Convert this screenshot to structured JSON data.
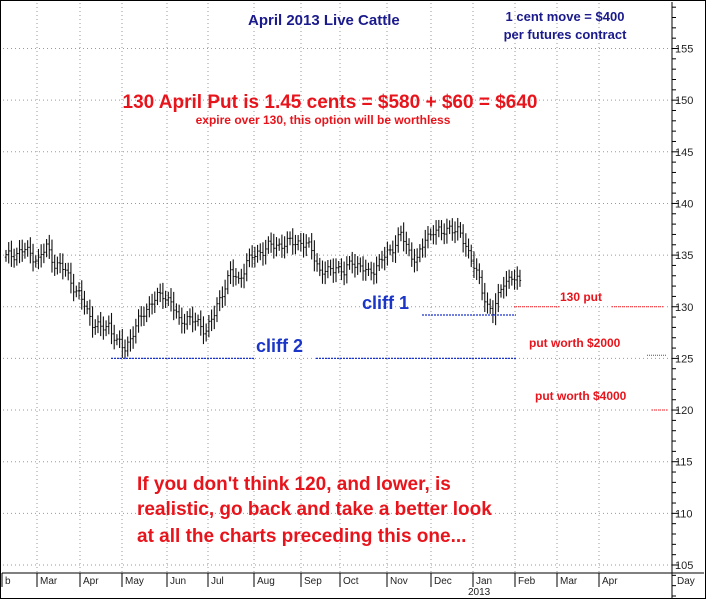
{
  "chart_data": {
    "type": "bar",
    "style": "ohlc",
    "title": "April 2013 Live Cattle",
    "note_lines": [
      "1 cent move = $400",
      "per futures contract"
    ],
    "headline": "130 April Put is 1.45 cents = $580 + $60 = $640",
    "subheadline": "expire over 130, this option will be worthless",
    "bottom_text": [
      "If you don't think 120, and lower, is",
      "realistic, go back and take a better look",
      "at all the charts preceding this one..."
    ],
    "y_axis": {
      "position": "right",
      "ylim": [
        101,
        160
      ],
      "ticks": [
        105,
        110,
        115,
        120,
        125,
        130,
        135,
        140,
        145,
        150,
        155
      ]
    },
    "x_axis": {
      "months": [
        "b",
        "Mar",
        "Apr",
        "May",
        "Jun",
        "Jul",
        "Aug",
        "Sep",
        "Oct",
        "Nov",
        "Dec",
        "Jan",
        "Feb",
        "Mar",
        "Apr"
      ],
      "year_label": "2013",
      "corner_label": "Day"
    },
    "levels": [
      {
        "name": "cliff 1",
        "value": 129.2,
        "color": "#1a35c8"
      },
      {
        "name": "cliff 2",
        "value": 125.0,
        "color": "#1a35c8"
      }
    ],
    "price_labels": [
      {
        "text": "130 put",
        "value": 130.0,
        "color": "#e8141c"
      },
      {
        "text": "put worth $2000",
        "value": 125.3,
        "color": "#e8141c"
      },
      {
        "text": "put worth $4000",
        "value": 120.0,
        "color": "#e8141c"
      }
    ],
    "close_path": [
      [
        0,
        134.8
      ],
      [
        7,
        135.5
      ],
      [
        12,
        134.5
      ],
      [
        15,
        135.8
      ],
      [
        18,
        134.2
      ],
      [
        22,
        133.5
      ],
      [
        26,
        131.5
      ],
      [
        29,
        130.2
      ],
      [
        32,
        128.5
      ],
      [
        35,
        127.8
      ],
      [
        38,
        128.3
      ],
      [
        41,
        126.5
      ],
      [
        44,
        126.0
      ],
      [
        47,
        127.5
      ],
      [
        51,
        129.5
      ],
      [
        54,
        130.5
      ],
      [
        58,
        131.2
      ],
      [
        61,
        130.5
      ],
      [
        64,
        128.5
      ],
      [
        67,
        129.0
      ],
      [
        71,
        128.3
      ],
      [
        74,
        127.8
      ],
      [
        77,
        129.2
      ],
      [
        80,
        131.5
      ],
      [
        83,
        133.3
      ],
      [
        86,
        132.5
      ],
      [
        89,
        134.3
      ],
      [
        93,
        135.2
      ],
      [
        97,
        135.8
      ],
      [
        101,
        136.0
      ],
      [
        105,
        136.2
      ],
      [
        109,
        136.3
      ],
      [
        113,
        135.5
      ],
      [
        116,
        133.5
      ],
      [
        119,
        133.3
      ],
      [
        122,
        134.0
      ],
      [
        125,
        133.2
      ],
      [
        128,
        134.5
      ],
      [
        131,
        133.8
      ],
      [
        134,
        133.2
      ],
      [
        137,
        134.0
      ],
      [
        140,
        134.8
      ],
      [
        143,
        135.8
      ],
      [
        146,
        137.0
      ],
      [
        149,
        135.3
      ],
      [
        152,
        134.5
      ],
      [
        155,
        136.5
      ],
      [
        158,
        137.5
      ],
      [
        161,
        137.0
      ],
      [
        164,
        137.8
      ],
      [
        167,
        137.2
      ],
      [
        170,
        136.0
      ],
      [
        173,
        134.0
      ],
      [
        176,
        131.5
      ],
      [
        178,
        130.2
      ],
      [
        180,
        129.5
      ],
      [
        182,
        130.8
      ],
      [
        184,
        132.5
      ],
      [
        187,
        132.8
      ],
      [
        190,
        132.3
      ]
    ]
  },
  "colors": {
    "bars": "#111111",
    "grid": "#9a9a9a",
    "cliff": "#1a35c8",
    "red": "#e8141c",
    "title": "#1a1a8c"
  }
}
